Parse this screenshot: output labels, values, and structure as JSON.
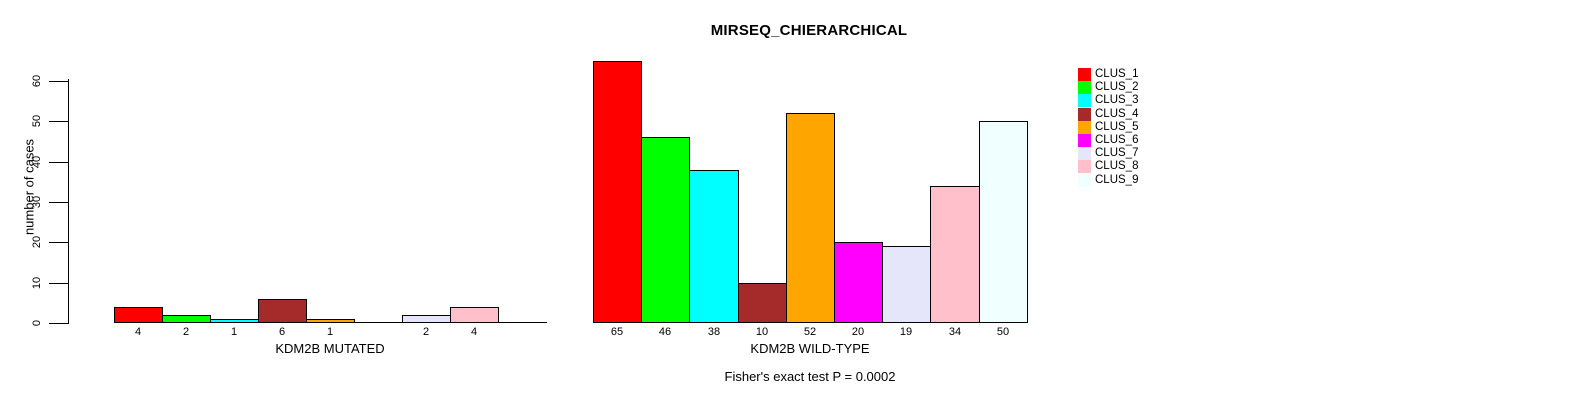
{
  "title": "MIRSEQ_CHIERARCHICAL",
  "subtitle": "Fisher's exact test P = 0.0002",
  "legend": {
    "position": "top-right",
    "items": [
      {
        "label": "CLUS_1",
        "color": "#FF0000"
      },
      {
        "label": "CLUS_2",
        "color": "#00FF00"
      },
      {
        "label": "CLUS_3",
        "color": "#00FFFF"
      },
      {
        "label": "CLUS_4",
        "color": "#A52A2A"
      },
      {
        "label": "CLUS_5",
        "color": "#FFA500"
      },
      {
        "label": "CLUS_6",
        "color": "#FF00FF"
      },
      {
        "label": "CLUS_7",
        "color": "#E6E6FA"
      },
      {
        "label": "CLUS_8",
        "color": "#FFC0CB"
      },
      {
        "label": "CLUS_9",
        "color": "#F0FFFF"
      }
    ]
  },
  "chart_data": [
    {
      "type": "bar",
      "name": "kdm2b-mutated",
      "xlabel": "KDM2B MUTATED",
      "ylabel": "number of cases",
      "categories": [
        "CLUS_1",
        "CLUS_2",
        "CLUS_3",
        "CLUS_4",
        "CLUS_5",
        "CLUS_6",
        "CLUS_7",
        "CLUS_8",
        "CLUS_9"
      ],
      "values": [
        4,
        2,
        1,
        6,
        1,
        0,
        2,
        4,
        0
      ],
      "bar_labels": [
        "4",
        "2",
        "1",
        "6",
        "1",
        "",
        "2",
        "4",
        ""
      ],
      "ylim": [
        0,
        60
      ],
      "yticks": [
        0,
        10,
        20,
        30,
        40,
        50,
        60
      ],
      "grid": false,
      "y_axis_shown": true
    },
    {
      "type": "bar",
      "name": "kdm2b-wild-type",
      "xlabel": "KDM2B WILD-TYPE",
      "ylabel": "",
      "categories": [
        "CLUS_1",
        "CLUS_2",
        "CLUS_3",
        "CLUS_4",
        "CLUS_5",
        "CLUS_6",
        "CLUS_7",
        "CLUS_8",
        "CLUS_9"
      ],
      "values": [
        65,
        46,
        38,
        10,
        52,
        20,
        19,
        34,
        50
      ],
      "bar_labels": [
        "65",
        "46",
        "38",
        "10",
        "52",
        "20",
        "19",
        "34",
        "50"
      ],
      "ylim": [
        0,
        60
      ],
      "yticks": [
        0,
        10,
        20,
        30,
        40,
        50,
        60
      ],
      "grid": false,
      "y_axis_shown": false
    }
  ]
}
